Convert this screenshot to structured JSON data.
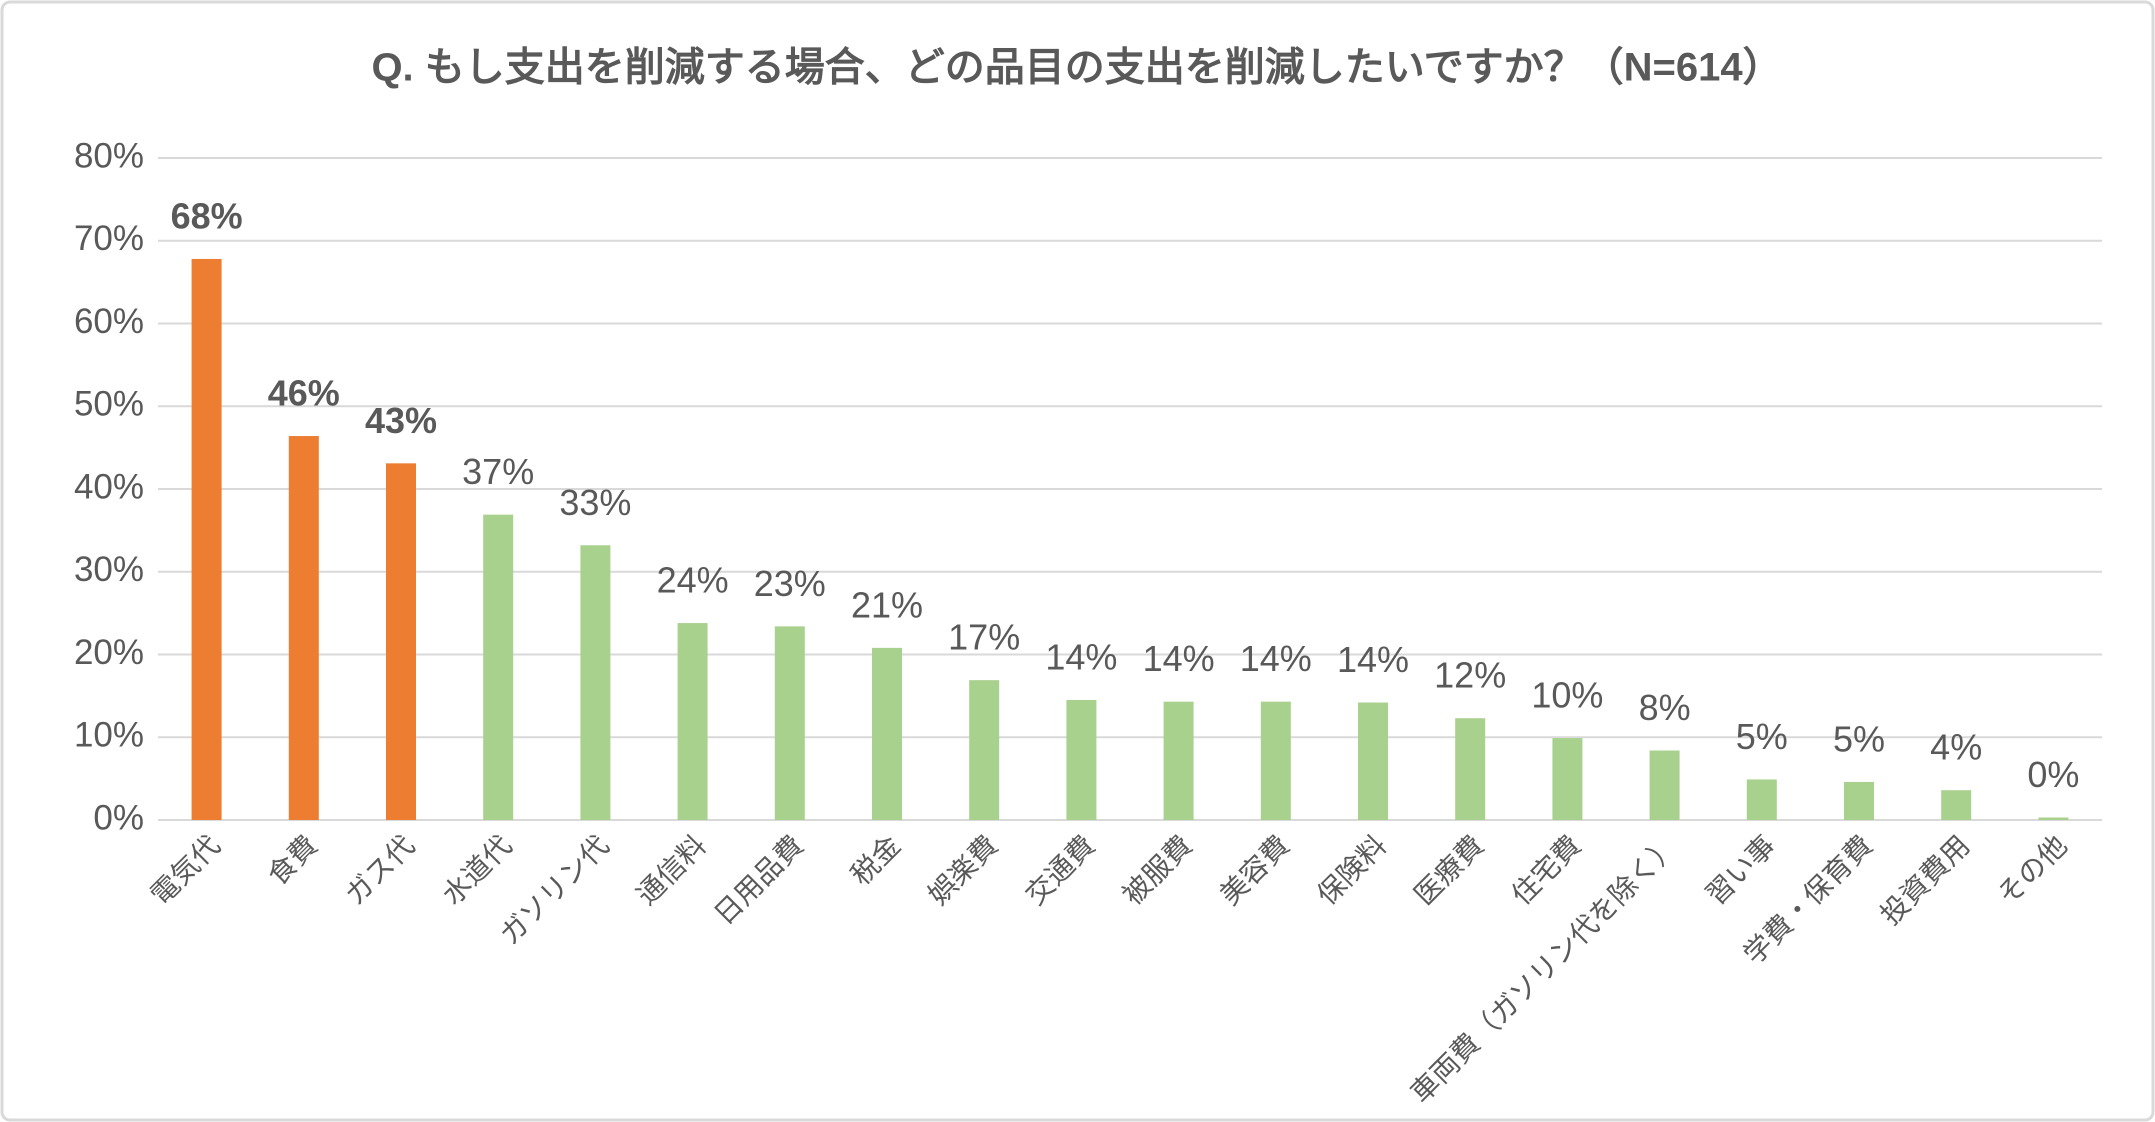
{
  "chart_data": {
    "type": "bar",
    "title": "Q. もし支出を削減する場合、どの品目の支出を削減したいですか？（N=614）",
    "categories": [
      "電気代",
      "食費",
      "ガス代",
      "水道代",
      "ガソリン代",
      "通信料",
      "日用品費",
      "税金",
      "娯楽費",
      "交通費",
      "被服費",
      "美容費",
      "保険料",
      "医療費",
      "住宅費",
      "車両費（ガソリン代を除く）",
      "習い事",
      "学費・保育費",
      "投資費用",
      "その他"
    ],
    "values": [
      67.8,
      46.4,
      43.1,
      36.9,
      33.2,
      23.8,
      23.4,
      20.8,
      16.9,
      14.5,
      14.3,
      14.3,
      14.2,
      12.3,
      9.9,
      8.4,
      4.9,
      4.6,
      3.6,
      0.3
    ],
    "value_labels": [
      "68%",
      "46%",
      "43%",
      "37%",
      "33%",
      "24%",
      "23%",
      "21%",
      "17%",
      "14%",
      "14%",
      "14%",
      "14%",
      "12%",
      "10%",
      "8%",
      "5%",
      "5%",
      "4%",
      "0%"
    ],
    "color": "#a9d18e",
    "colors": [
      "#ed7d31",
      "#ed7d31",
      "#ed7d31",
      "#a9d18e",
      "#a9d18e",
      "#a9d18e",
      "#a9d18e",
      "#a9d18e",
      "#a9d18e",
      "#a9d18e",
      "#a9d18e",
      "#a9d18e",
      "#a9d18e",
      "#a9d18e",
      "#a9d18e",
      "#a9d18e",
      "#a9d18e",
      "#a9d18e",
      "#a9d18e",
      "#a9d18e"
    ],
    "ylim": [
      0,
      80
    ],
    "yticks": [
      {
        "value": 0,
        "label": "0%"
      },
      {
        "value": 10,
        "label": "10%"
      },
      {
        "value": 20,
        "label": "20%"
      },
      {
        "value": 30,
        "label": "30%"
      },
      {
        "value": 40,
        "label": "40%"
      },
      {
        "value": 50,
        "label": "50%"
      },
      {
        "value": 60,
        "label": "60%"
      },
      {
        "value": 70,
        "label": "70%"
      },
      {
        "value": 80,
        "label": "80%"
      }
    ],
    "grid": true
  }
}
